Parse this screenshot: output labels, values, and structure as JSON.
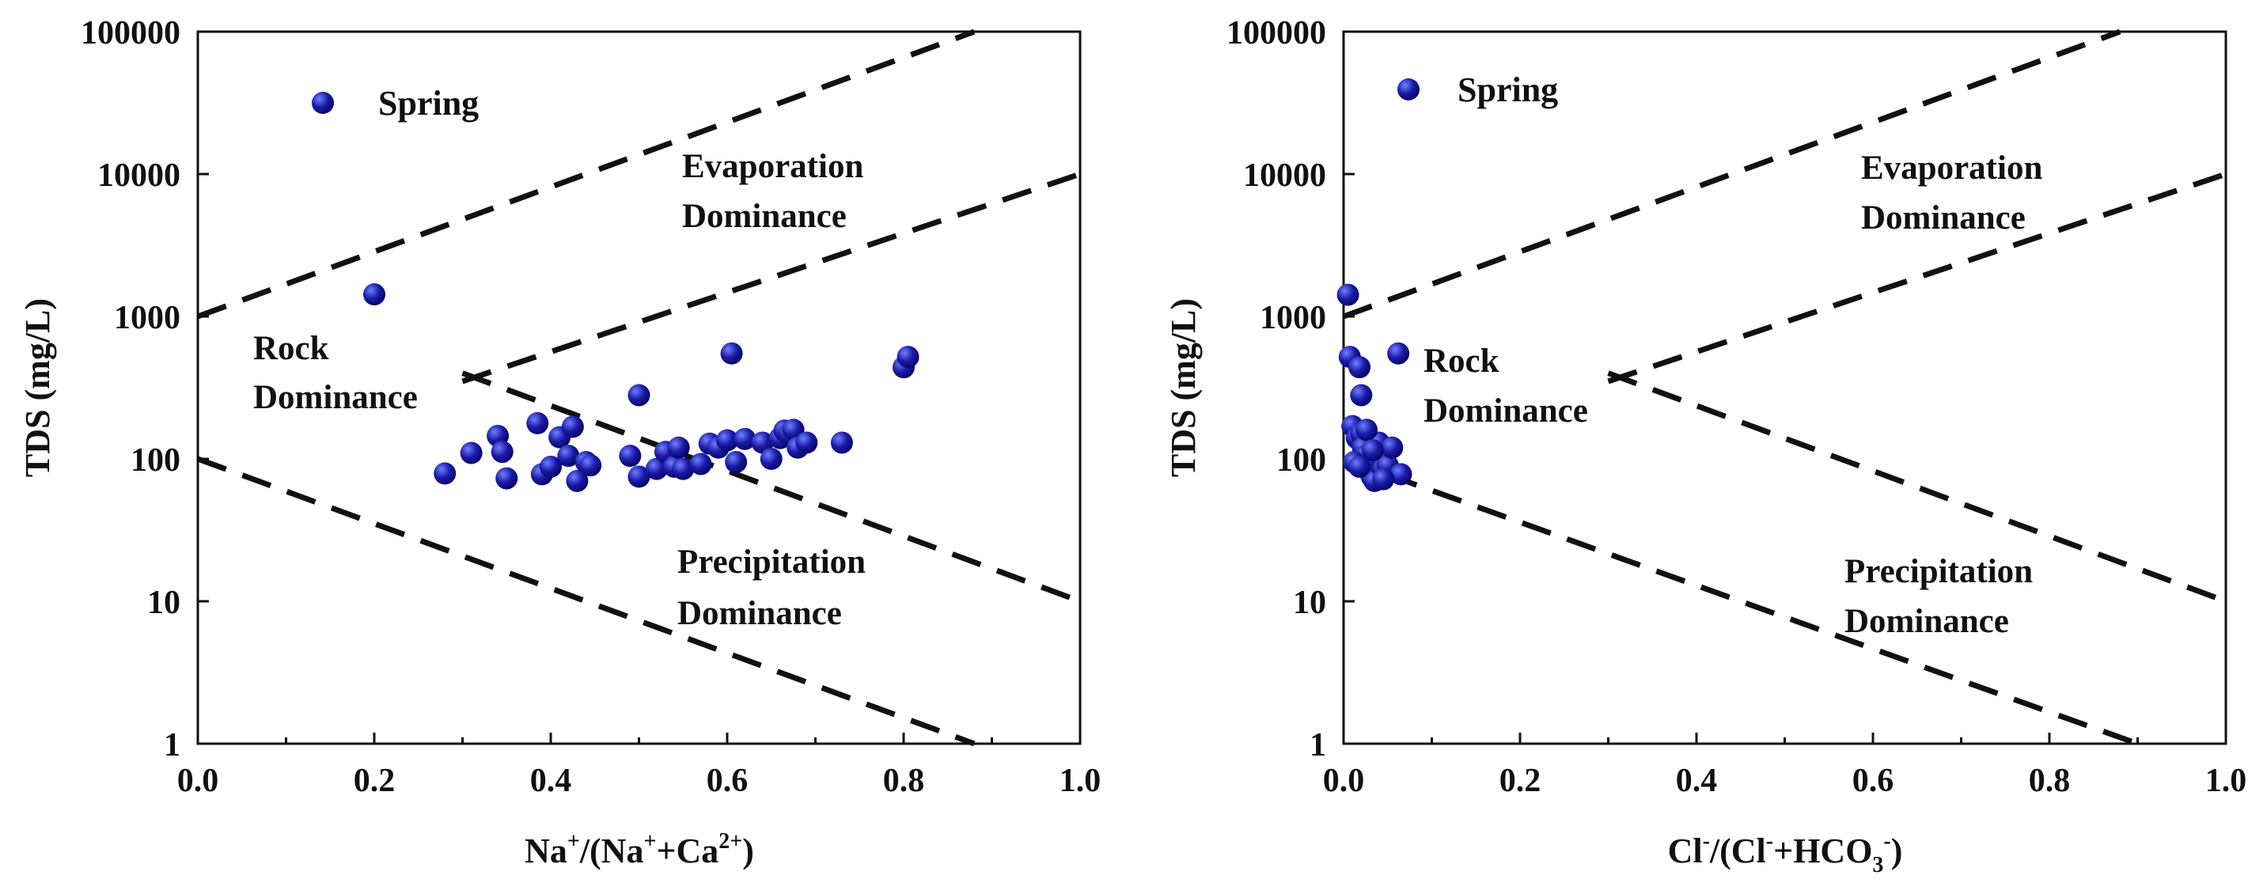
{
  "colors": {
    "point": "#1a1aa6",
    "point_highlight": "#6f7fff",
    "point_shadow": "#06066a",
    "ink": "#111111"
  },
  "chart_data": [
    {
      "type": "scatter",
      "title": "",
      "xlabel": "Na+/(Na++Ca2+)",
      "xlabel_parts": {
        "a": "Na",
        "a_sup": "+",
        "b": "/(Na",
        "b_sup": "+",
        "c": "+Ca",
        "c_sup": "2+",
        "d": ")"
      },
      "ylabel": "TDS (mg/L)",
      "xlim": [
        0.0,
        1.0
      ],
      "ylim": [
        1,
        100000
      ],
      "yscale": "log",
      "x_ticks": [
        "0.0",
        "0.2",
        "0.4",
        "0.6",
        "0.8",
        "1.0"
      ],
      "y_ticks": [
        "1",
        "10",
        "100",
        "1000",
        "10000",
        "100000"
      ],
      "legend": {
        "label": "Spring",
        "position": "top-left"
      },
      "regions": {
        "rock": [
          "Rock",
          "Dominance"
        ],
        "evaporation": [
          "Evaporation",
          "Dominance"
        ],
        "precipitation": [
          "Precipitation",
          "Dominance"
        ]
      },
      "boundary_lines": [
        {
          "x": [
            0.0,
            0.88
          ],
          "y": [
            1000,
            100000
          ]
        },
        {
          "x": [
            0.3,
            1.0
          ],
          "y": [
            350,
            10000
          ]
        },
        {
          "x": [
            0.0,
            0.88
          ],
          "y": [
            100,
            1
          ]
        },
        {
          "x": [
            0.3,
            1.0
          ],
          "y": [
            400,
            10
          ]
        }
      ],
      "series": [
        {
          "name": "Spring",
          "points": [
            [
              0.2,
              1430
            ],
            [
              0.28,
              79
            ],
            [
              0.31,
              110
            ],
            [
              0.34,
              145
            ],
            [
              0.345,
              112
            ],
            [
              0.35,
              73
            ],
            [
              0.385,
              178
            ],
            [
              0.39,
              78
            ],
            [
              0.4,
              88
            ],
            [
              0.41,
              142
            ],
            [
              0.42,
              105
            ],
            [
              0.425,
              168
            ],
            [
              0.43,
              70
            ],
            [
              0.44,
              95
            ],
            [
              0.445,
              90
            ],
            [
              0.49,
              105
            ],
            [
              0.5,
              280
            ],
            [
              0.5,
              75
            ],
            [
              0.52,
              85
            ],
            [
              0.53,
              112
            ],
            [
              0.54,
              88
            ],
            [
              0.545,
              120
            ],
            [
              0.55,
              85
            ],
            [
              0.57,
              92
            ],
            [
              0.58,
              128
            ],
            [
              0.59,
              120
            ],
            [
              0.6,
              135
            ],
            [
              0.605,
              550
            ],
            [
              0.61,
              95
            ],
            [
              0.62,
              138
            ],
            [
              0.64,
              130
            ],
            [
              0.65,
              100
            ],
            [
              0.66,
              140
            ],
            [
              0.665,
              158
            ],
            [
              0.67,
              150
            ],
            [
              0.675,
              160
            ],
            [
              0.68,
              120
            ],
            [
              0.69,
              130
            ],
            [
              0.73,
              130
            ],
            [
              0.8,
              440
            ],
            [
              0.805,
              520
            ]
          ]
        }
      ]
    },
    {
      "type": "scatter",
      "title": "",
      "xlabel": "Cl-/(Cl-+HCO3-)",
      "xlabel_parts": {
        "a": "Cl",
        "a_sup": "-",
        "b": "/(Cl",
        "b_sup": "-",
        "c": "+HCO",
        "c_sub": "3",
        "c_sup": "-",
        "d": ")"
      },
      "ylabel": "TDS (mg/L)",
      "xlim": [
        0.0,
        1.0
      ],
      "ylim": [
        1,
        100000
      ],
      "yscale": "log",
      "x_ticks": [
        "0.0",
        "0.2",
        "0.4",
        "0.6",
        "0.8",
        "1.0"
      ],
      "y_ticks": [
        "1",
        "10",
        "100",
        "1000",
        "10000",
        "100000"
      ],
      "legend": {
        "label": "Spring",
        "position": "top-left"
      },
      "regions": {
        "rock": [
          "Rock",
          "Dominance"
        ],
        "evaporation": [
          "Evaporation",
          "Dominance"
        ],
        "precipitation": [
          "Precipitation",
          "Dominance"
        ]
      },
      "boundary_lines": [
        {
          "x": [
            0.0,
            0.88
          ],
          "y": [
            1000,
            100000
          ]
        },
        {
          "x": [
            0.3,
            1.0
          ],
          "y": [
            350,
            10000
          ]
        },
        {
          "x": [
            0.0,
            0.9
          ],
          "y": [
            100,
            1
          ]
        },
        {
          "x": [
            0.3,
            1.0
          ],
          "y": [
            400,
            10
          ]
        }
      ],
      "series": [
        {
          "name": "Spring",
          "points": [
            [
              0.005,
              1420
            ],
            [
              0.007,
              520
            ],
            [
              0.018,
              440
            ],
            [
              0.02,
              280
            ],
            [
              0.062,
              550
            ],
            [
              0.01,
              170
            ],
            [
              0.015,
              140
            ],
            [
              0.02,
              150
            ],
            [
              0.022,
              120
            ],
            [
              0.025,
              105
            ],
            [
              0.028,
              90
            ],
            [
              0.03,
              80
            ],
            [
              0.032,
              75
            ],
            [
              0.035,
              70
            ],
            [
              0.038,
              95
            ],
            [
              0.04,
              130
            ],
            [
              0.042,
              100
            ],
            [
              0.045,
              85
            ],
            [
              0.048,
              110
            ],
            [
              0.05,
              90
            ],
            [
              0.055,
              120
            ],
            [
              0.012,
              95
            ],
            [
              0.018,
              88
            ],
            [
              0.026,
              160
            ],
            [
              0.033,
              115
            ],
            [
              0.065,
              78
            ],
            [
              0.045,
              72
            ]
          ]
        }
      ]
    }
  ]
}
